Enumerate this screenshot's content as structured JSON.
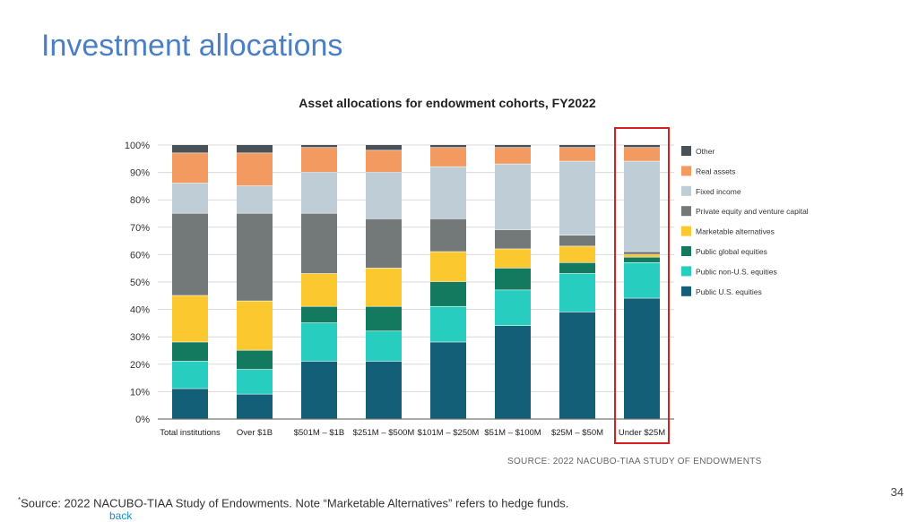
{
  "slide": {
    "title": "Investment allocations",
    "source_note": "SOURCE: 2022 NACUBO-TIAA STUDY OF ENDOWMENTS",
    "footnote_marker": "*",
    "footnote": "Source: 2022 NACUBO-TIAA Study of Endowments. Note “Marketable Alternatives” refers to hedge funds.",
    "back_link": "back",
    "page_number": "34"
  },
  "colors": {
    "Public U.S. equities": "#135f78",
    "Public non-U.S. equities": "#27cdbf",
    "Public global equities": "#137a60",
    "Marketable alternatives": "#fbc830",
    "Private equity and venture capital": "#727978",
    "Fixed income": "#bfcdd6",
    "Real assets": "#f29a60",
    "Other": "#4b5257",
    "highlight": "#d42020"
  },
  "chart_data": {
    "type": "bar",
    "stacked": true,
    "title": "Asset allocations for endowment cohorts, FY2022",
    "xlabel": "",
    "ylabel": "",
    "ylim": [
      0,
      100
    ],
    "yticks": [
      "0%",
      "10%",
      "20%",
      "30%",
      "40%",
      "50%",
      "60%",
      "70%",
      "80%",
      "90%",
      "100%"
    ],
    "legend_position": "right",
    "highlighted_category": "Under $25M",
    "categories": [
      "Total institutions",
      "Over $1B",
      "$501M – $1B",
      "$251M – $500M",
      "$101M – $250M",
      "$51M – $100M",
      "$25M – $50M",
      "Under $25M"
    ],
    "series": [
      {
        "name": "Public U.S. equities",
        "values": [
          11,
          9,
          21,
          21,
          28,
          34,
          39,
          44
        ]
      },
      {
        "name": "Public non-U.S. equities",
        "values": [
          10,
          9,
          14,
          11,
          13,
          13,
          14,
          13
        ]
      },
      {
        "name": "Public global equities",
        "values": [
          7,
          7,
          6,
          9,
          9,
          8,
          4,
          2
        ]
      },
      {
        "name": "Marketable alternatives",
        "values": [
          17,
          18,
          12,
          14,
          11,
          7,
          6,
          1
        ]
      },
      {
        "name": "Private equity and venture capital",
        "values": [
          30,
          32,
          22,
          18,
          12,
          7,
          4,
          1
        ]
      },
      {
        "name": "Fixed income",
        "values": [
          11,
          10,
          15,
          17,
          19,
          24,
          27,
          33
        ]
      },
      {
        "name": "Real assets",
        "values": [
          11,
          12,
          9,
          8,
          7,
          6,
          5,
          5
        ]
      },
      {
        "name": "Other",
        "values": [
          3,
          3,
          1,
          2,
          1,
          1,
          1,
          1
        ]
      }
    ]
  }
}
